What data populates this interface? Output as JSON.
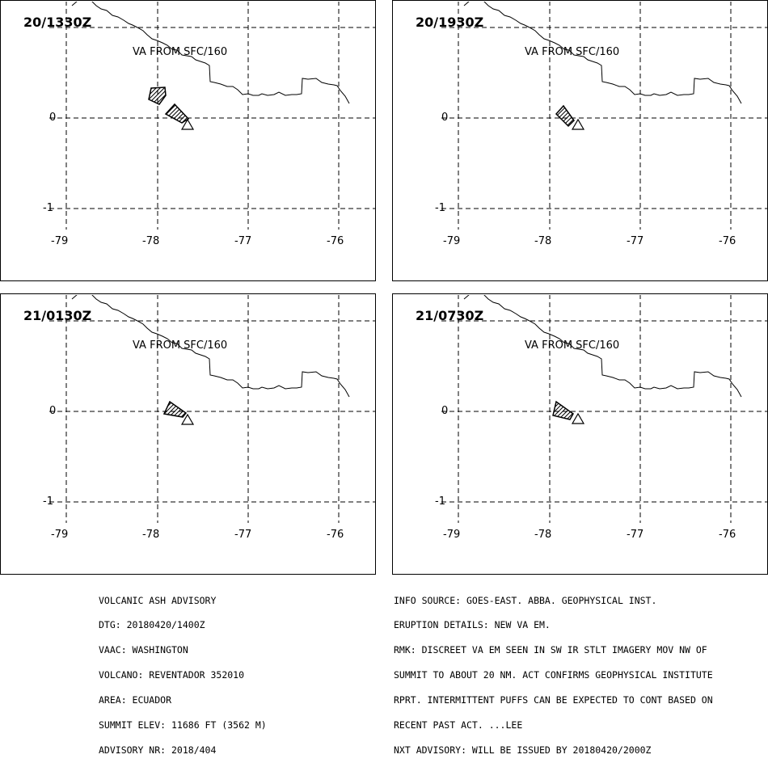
{
  "panels": [
    {
      "time": "20/1330Z",
      "label": "VA FROM SFC/160",
      "polygons": 2
    },
    {
      "time": "20/1930Z",
      "label": "VA FROM SFC/160",
      "polygons": 1
    },
    {
      "time": "21/0130Z",
      "label": "VA FROM SFC/160",
      "polygons": 1
    },
    {
      "time": "21/0730Z",
      "label": "VA FROM SFC/160",
      "polygons": 1
    }
  ],
  "axes": {
    "lon_ticks": [
      "-79",
      "-78",
      "-77",
      "-76"
    ],
    "lat_ticks": [
      "0",
      "-1"
    ]
  },
  "footer": {
    "left": [
      "VOLCANIC ASH ADVISORY",
      "DTG: 20180420/1400Z",
      "VAAC: WASHINGTON",
      "VOLCANO: REVENTADOR 352010",
      "AREA: ECUADOR",
      "SUMMIT ELEV: 11686 FT (3562 M)",
      "ADVISORY NR: 2018/404"
    ],
    "right": [
      "INFO SOURCE: GOES-EAST. ABBA. GEOPHYSICAL INST.",
      "ERUPTION DETAILS: NEW VA EM.",
      "RMK: DISCREET VA EM SEEN IN SW IR STLT IMAGERY MOV NW OF",
      "SUMMIT TO ABOUT 20 NM. ACT CONFIRMS GEOPHYSICAL INSTITUTE",
      "RPRT. INTERMITTENT PUFFS CAN BE EXPECTED TO CONT BASED ON",
      "RECENT PAST ACT. ...LEE",
      "NXT ADVISORY: WILL BE ISSUED BY 20180420/2000Z"
    ]
  }
}
